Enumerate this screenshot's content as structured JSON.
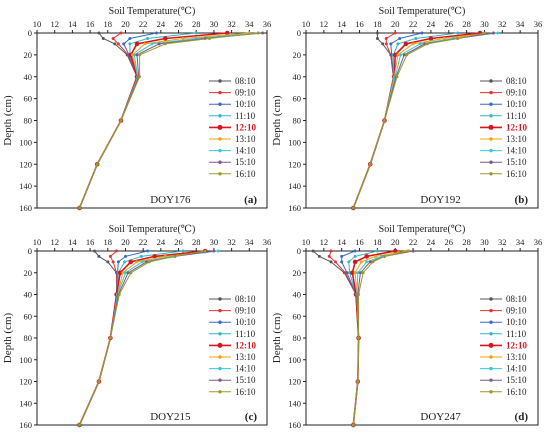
{
  "chart_data": [
    {
      "type": "line",
      "title": "Soil Temperature(℃)",
      "xlabel": "Soil Temperature(℃)",
      "ylabel": "Depth (cm)",
      "xlim": [
        10,
        36
      ],
      "ylim": [
        0,
        160
      ],
      "y_inverted": true,
      "x_axis_position": "top",
      "xticks": [
        "10",
        "12",
        "14",
        "16",
        "18",
        "20",
        "22",
        "24",
        "26",
        "28",
        "30",
        "32",
        "34",
        "36"
      ],
      "yticks": [
        "0",
        "20",
        "40",
        "60",
        "80",
        "100",
        "120",
        "140",
        "160"
      ],
      "annotation": "DOY176",
      "panel_label": "(a)",
      "legend_position": "right",
      "depths": [
        0,
        5,
        10,
        20,
        40,
        80,
        120,
        160
      ],
      "series": [
        {
          "name": "08:10",
          "color": "#555555",
          "values": [
            17.0,
            17.5,
            18.8,
            20.2,
            21.3,
            19.5,
            16.8,
            14.8
          ]
        },
        {
          "name": "09:10",
          "color": "#e8332f",
          "values": [
            19.5,
            18.6,
            19.2,
            20.3,
            21.3,
            19.5,
            16.8,
            14.8
          ]
        },
        {
          "name": "10:10",
          "color": "#3b68c8",
          "values": [
            23.5,
            20.5,
            19.8,
            20.4,
            21.3,
            19.5,
            16.8,
            14.8
          ]
        },
        {
          "name": "11:10",
          "color": "#31b7c2",
          "values": [
            28.0,
            22.5,
            20.5,
            20.5,
            21.3,
            19.5,
            16.8,
            14.8
          ]
        },
        {
          "name": "12:10",
          "color": "#d8161c",
          "values": [
            31.5,
            24.5,
            21.3,
            20.6,
            21.3,
            19.5,
            16.8,
            14.8
          ]
        },
        {
          "name": "13:10",
          "color": "#f0a30a",
          "values": [
            34.0,
            26.5,
            22.2,
            20.8,
            21.4,
            19.5,
            16.8,
            14.8
          ]
        },
        {
          "name": "14:10",
          "color": "#37c7e0",
          "values": [
            35.0,
            28.0,
            23.0,
            21.0,
            21.4,
            19.5,
            16.8,
            14.8
          ]
        },
        {
          "name": "15:10",
          "color": "#7a5a86",
          "values": [
            35.5,
            29.0,
            23.8,
            21.3,
            21.5,
            19.5,
            16.8,
            14.8
          ]
        },
        {
          "name": "16:10",
          "color": "#9a9a2e",
          "values": [
            35.0,
            29.5,
            24.5,
            21.6,
            21.6,
            19.5,
            16.8,
            14.8
          ]
        }
      ]
    },
    {
      "type": "line",
      "title": "Soil Temperature(℃)",
      "xlabel": "Soil Temperature(℃)",
      "ylabel": "Depth (cm)",
      "xlim": [
        10,
        36
      ],
      "ylim": [
        0,
        160
      ],
      "y_inverted": true,
      "x_axis_position": "top",
      "xticks": [
        "10",
        "12",
        "14",
        "16",
        "18",
        "20",
        "22",
        "24",
        "26",
        "28",
        "30",
        "32",
        "34",
        "36"
      ],
      "yticks": [
        "0",
        "20",
        "40",
        "60",
        "80",
        "100",
        "120",
        "140",
        "160"
      ],
      "annotation": "DOY192",
      "panel_label": "(b)",
      "legend_position": "right",
      "depths": [
        0,
        5,
        10,
        20,
        40,
        80,
        120,
        160
      ],
      "series": [
        {
          "name": "08:10",
          "color": "#555555",
          "values": [
            18.0,
            18.0,
            18.6,
            19.5,
            19.8,
            18.8,
            17.2,
            15.3
          ]
        },
        {
          "name": "09:10",
          "color": "#e8332f",
          "values": [
            20.0,
            19.0,
            19.0,
            19.5,
            19.8,
            18.8,
            17.2,
            15.3
          ]
        },
        {
          "name": "10:10",
          "color": "#3b68c8",
          "values": [
            23.0,
            20.5,
            19.5,
            19.6,
            19.8,
            18.8,
            17.2,
            15.3
          ]
        },
        {
          "name": "11:10",
          "color": "#31b7c2",
          "values": [
            27.0,
            22.3,
            20.3,
            19.8,
            19.8,
            18.8,
            17.2,
            15.3
          ]
        },
        {
          "name": "12:10",
          "color": "#d8161c",
          "values": [
            29.5,
            24.0,
            21.2,
            20.0,
            19.9,
            18.8,
            17.2,
            15.3
          ]
        },
        {
          "name": "13:10",
          "color": "#f0a30a",
          "values": [
            31.0,
            25.5,
            22.0,
            20.3,
            19.9,
            18.8,
            17.2,
            15.3
          ]
        },
        {
          "name": "14:10",
          "color": "#37c7e0",
          "values": [
            31.5,
            26.5,
            22.8,
            20.6,
            20.0,
            18.8,
            17.2,
            15.3
          ]
        },
        {
          "name": "15:10",
          "color": "#7a5a86",
          "values": [
            31.0,
            27.0,
            23.3,
            21.0,
            20.1,
            18.8,
            17.2,
            15.3
          ]
        },
        {
          "name": "16:10",
          "color": "#9a9a2e",
          "values": [
            30.0,
            27.0,
            23.6,
            21.3,
            20.2,
            18.8,
            17.2,
            15.3
          ]
        }
      ]
    },
    {
      "type": "line",
      "title": "Soil Temperature(℃)",
      "xlabel": "Soil Temperature(℃)",
      "ylabel": "Depth (cm)",
      "xlim": [
        10,
        36
      ],
      "ylim": [
        0,
        160
      ],
      "y_inverted": true,
      "x_axis_position": "top",
      "xticks": [
        "10",
        "12",
        "14",
        "16",
        "18",
        "20",
        "22",
        "24",
        "26",
        "28",
        "30",
        "32",
        "34",
        "36"
      ],
      "yticks": [
        "0",
        "20",
        "40",
        "60",
        "80",
        "100",
        "120",
        "140",
        "160"
      ],
      "annotation": "DOY215",
      "panel_label": "(c)",
      "legend_position": "right",
      "depths": [
        0,
        5,
        10,
        20,
        40,
        80,
        120,
        160
      ],
      "series": [
        {
          "name": "08:10",
          "color": "#555555",
          "values": [
            16.5,
            17.0,
            18.0,
            19.0,
            19.0,
            18.3,
            17.0,
            14.8
          ]
        },
        {
          "name": "09:10",
          "color": "#e8332f",
          "values": [
            19.0,
            18.3,
            18.6,
            19.0,
            19.0,
            18.3,
            17.0,
            14.8
          ]
        },
        {
          "name": "10:10",
          "color": "#3b68c8",
          "values": [
            22.5,
            20.0,
            19.2,
            19.1,
            19.0,
            18.3,
            17.0,
            14.8
          ]
        },
        {
          "name": "11:10",
          "color": "#31b7c2",
          "values": [
            26.5,
            21.8,
            19.9,
            19.2,
            19.0,
            18.3,
            17.0,
            14.8
          ]
        },
        {
          "name": "12:10",
          "color": "#d8161c",
          "values": [
            29.0,
            23.3,
            20.6,
            19.4,
            19.0,
            18.3,
            17.0,
            14.8
          ]
        },
        {
          "name": "13:10",
          "color": "#f0a30a",
          "values": [
            30.5,
            24.5,
            21.3,
            19.7,
            19.1,
            18.3,
            17.0,
            14.8
          ]
        },
        {
          "name": "14:10",
          "color": "#37c7e0",
          "values": [
            30.5,
            25.3,
            21.9,
            20.0,
            19.1,
            18.3,
            17.0,
            14.8
          ]
        },
        {
          "name": "15:10",
          "color": "#7a5a86",
          "values": [
            30.0,
            25.6,
            22.4,
            20.3,
            19.2,
            18.3,
            17.0,
            14.8
          ]
        },
        {
          "name": "16:10",
          "color": "#9a9a2e",
          "values": [
            29.0,
            25.5,
            22.7,
            20.6,
            19.3,
            18.3,
            17.0,
            14.8
          ]
        }
      ]
    },
    {
      "type": "line",
      "title": "Soil Temperature(℃)",
      "xlabel": "Soil Temperature(℃)",
      "ylabel": "Depth (cm)",
      "xlim": [
        10,
        36
      ],
      "ylim": [
        0,
        160
      ],
      "y_inverted": true,
      "x_axis_position": "top",
      "xticks": [
        "10",
        "12",
        "14",
        "16",
        "18",
        "20",
        "22",
        "24",
        "26",
        "28",
        "30",
        "32",
        "34",
        "36"
      ],
      "yticks": [
        "0",
        "20",
        "40",
        "60",
        "80",
        "100",
        "120",
        "140",
        "160"
      ],
      "annotation": "DOY247",
      "panel_label": "(d)",
      "legend_position": "right",
      "depths": [
        0,
        5,
        10,
        20,
        40,
        80,
        120,
        160
      ],
      "series": [
        {
          "name": "08:10",
          "color": "#555555",
          "values": [
            10.8,
            11.5,
            12.8,
            14.3,
            15.6,
            15.9,
            15.8,
            15.3
          ]
        },
        {
          "name": "09:10",
          "color": "#e8332f",
          "values": [
            12.8,
            12.6,
            13.3,
            14.4,
            15.6,
            15.9,
            15.8,
            15.3
          ]
        },
        {
          "name": "10:10",
          "color": "#3b68c8",
          "values": [
            15.5,
            14.0,
            14.0,
            14.6,
            15.6,
            15.9,
            15.8,
            15.3
          ]
        },
        {
          "name": "11:10",
          "color": "#31b7c2",
          "values": [
            18.0,
            15.5,
            14.8,
            14.9,
            15.6,
            15.9,
            15.8,
            15.3
          ]
        },
        {
          "name": "12:10",
          "color": "#d8161c",
          "values": [
            20.0,
            16.8,
            15.5,
            15.2,
            15.6,
            15.9,
            15.8,
            15.3
          ]
        },
        {
          "name": "13:10",
          "color": "#f0a30a",
          "values": [
            21.3,
            17.8,
            16.2,
            15.5,
            15.7,
            15.9,
            15.8,
            15.3
          ]
        },
        {
          "name": "14:10",
          "color": "#37c7e0",
          "values": [
            22.0,
            18.5,
            16.8,
            15.8,
            15.7,
            15.9,
            15.8,
            15.3
          ]
        },
        {
          "name": "15:10",
          "color": "#7a5a86",
          "values": [
            22.0,
            18.8,
            17.2,
            16.1,
            15.8,
            15.9,
            15.8,
            15.3
          ]
        },
        {
          "name": "16:10",
          "color": "#9a9a2e",
          "values": [
            21.5,
            18.8,
            17.5,
            16.4,
            15.9,
            15.9,
            15.8,
            15.3
          ]
        }
      ]
    }
  ]
}
